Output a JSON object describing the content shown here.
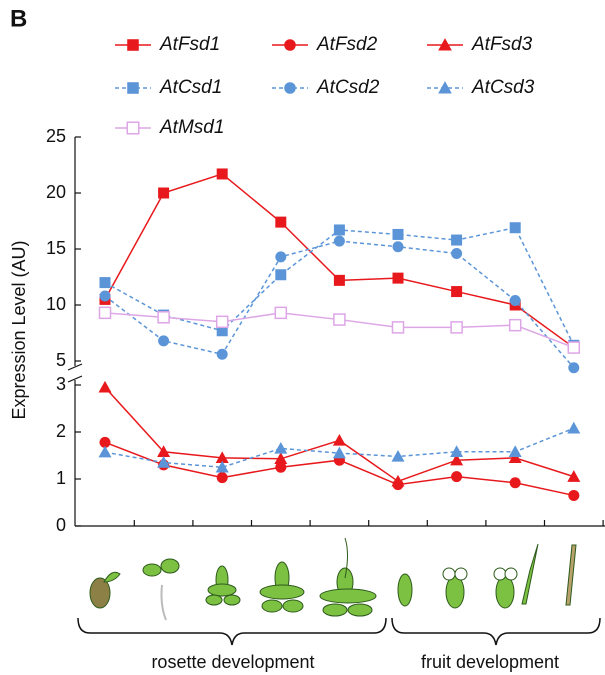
{
  "panel_label": "B",
  "y_label": "Expression Level (AU)",
  "groups": [
    "rosette development",
    "fruit development"
  ],
  "chart_data": [
    {
      "type": "line",
      "categories": [
        null,
        null,
        null,
        null,
        null,
        null,
        null,
        null,
        null
      ],
      "ylim": [
        5,
        25
      ],
      "yticks": [
        5,
        10,
        15,
        20,
        25
      ],
      "series": [
        {
          "name": "AtFsd1",
          "color": "#e8191c",
          "marker": "square",
          "dashed": false,
          "values": [
            10.5,
            20,
            21.7,
            17.4,
            12.2,
            12.4,
            11.2,
            10,
            6.2
          ]
        },
        {
          "name": "AtCsd1",
          "color": "#5b95d8",
          "marker": "square",
          "dashed": true,
          "values": [
            12,
            9.1,
            7.7,
            12.7,
            16.7,
            16.3,
            15.8,
            16.9,
            6.4
          ]
        },
        {
          "name": "AtCsd2",
          "color": "#5b95d8",
          "marker": "circle",
          "dashed": true,
          "values": [
            10.8,
            6.8,
            5.6,
            14.3,
            15.7,
            15.2,
            14.6,
            10.4,
            4.4
          ]
        },
        {
          "name": "AtMsd1",
          "color": "#dda6e6",
          "marker": "open-square",
          "dashed": false,
          "values": [
            9.3,
            8.9,
            8.5,
            9.3,
            8.7,
            8,
            8,
            8.2,
            6.2
          ]
        }
      ]
    },
    {
      "type": "line",
      "categories": [
        null,
        null,
        null,
        null,
        null,
        null,
        null,
        null,
        null
      ],
      "ylim": [
        0,
        3
      ],
      "yticks": [
        0,
        1,
        2,
        3
      ],
      "series": [
        {
          "name": "AtFsd2",
          "color": "#e8191c",
          "marker": "circle",
          "dashed": false,
          "values": [
            1.78,
            1.3,
            1.03,
            1.25,
            1.4,
            0.88,
            1.05,
            0.92,
            0.65
          ]
        },
        {
          "name": "AtFsd3",
          "color": "#e8191c",
          "marker": "triangle",
          "dashed": false,
          "values": [
            2.95,
            1.58,
            1.45,
            1.43,
            1.82,
            0.95,
            1.4,
            1.45,
            1.05
          ]
        },
        {
          "name": "AtCsd3",
          "color": "#5b95d8",
          "marker": "triangle",
          "dashed": true,
          "values": [
            1.57,
            1.35,
            1.25,
            1.65,
            1.55,
            1.48,
            1.58,
            1.58,
            2.08
          ]
        }
      ]
    }
  ]
}
